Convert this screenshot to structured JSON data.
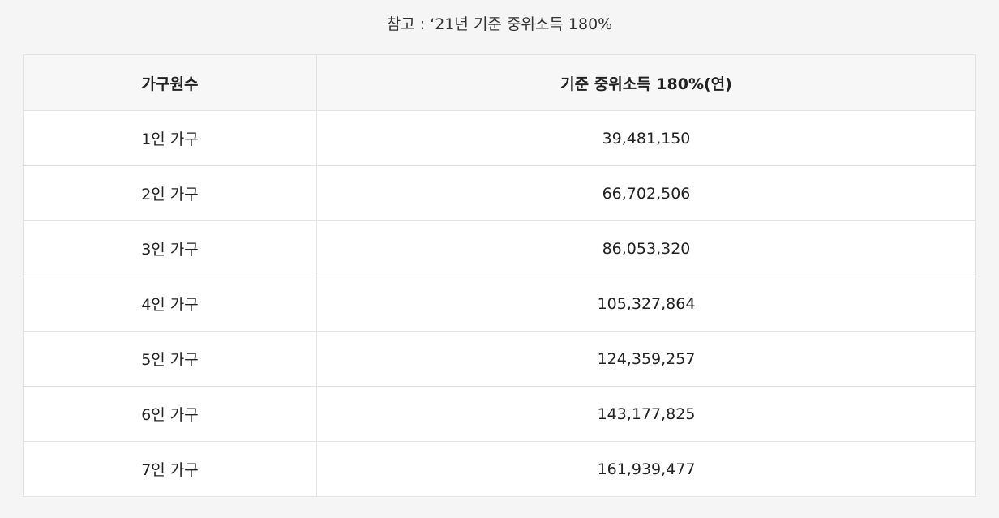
{
  "caption": "참고 : ‘21년 기준 중위소득 180%",
  "table": {
    "headers": [
      "가구원수",
      "기준 중위소득 180%(연)"
    ],
    "rows": [
      [
        "1인 가구",
        "39,481,150"
      ],
      [
        "2인 가구",
        "66,702,506"
      ],
      [
        "3인 가구",
        "86,053,320"
      ],
      [
        "4인 가구",
        "105,327,864"
      ],
      [
        "5인 가구",
        "124,359,257"
      ],
      [
        "6인 가구",
        "143,177,825"
      ],
      [
        "7인 가구",
        "161,939,477"
      ]
    ]
  },
  "colors": {
    "page_background": "#f5f5f5",
    "header_background": "#f7f7f8",
    "border": "#e3e3e3",
    "text": "#222222"
  }
}
